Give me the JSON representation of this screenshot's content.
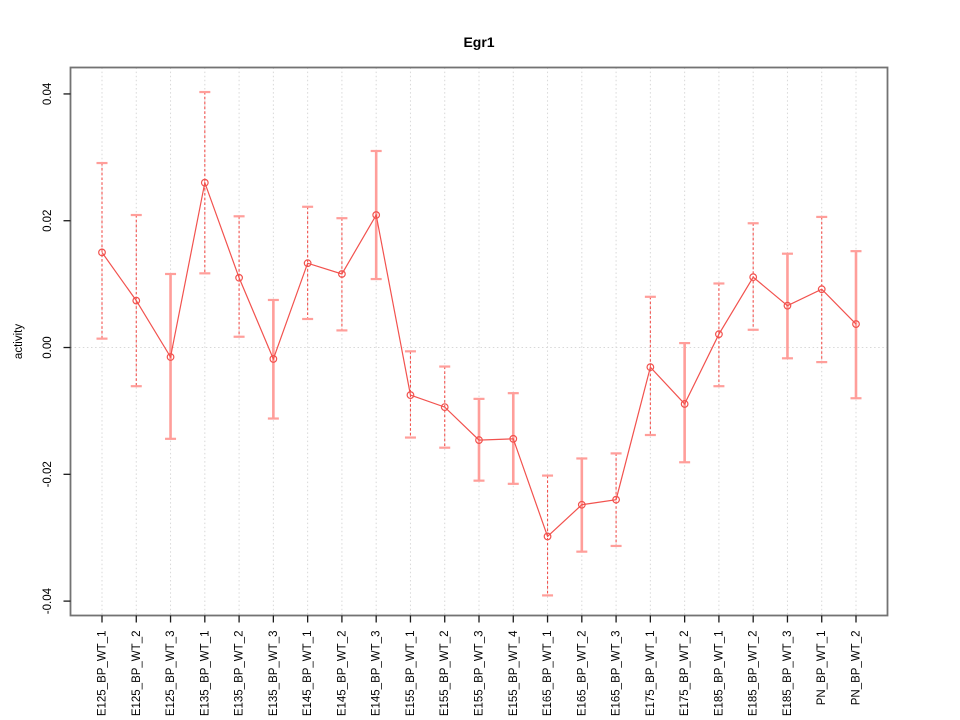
{
  "page": {
    "background": "#ffffff",
    "description": "R-style line plot with error bars"
  },
  "chart_data": {
    "type": "line",
    "title": "Egr1",
    "xlabel": "",
    "ylabel": "activity",
    "legend_position": "none",
    "point_marker": "open-circle",
    "categories": [
      "E125_BP_WT_1",
      "E125_BP_WT_2",
      "E125_BP_WT_3",
      "E135_BP_WT_1",
      "E135_BP_WT_2",
      "E135_BP_WT_3",
      "E145_BP_WT_1",
      "E145_BP_WT_2",
      "E145_BP_WT_3",
      "E155_BP_WT_1",
      "E155_BP_WT_2",
      "E155_BP_WT_3",
      "E155_BP_WT_4",
      "E165_BP_WT_1",
      "E165_BP_WT_2",
      "E165_BP_WT_3",
      "E175_BP_WT_1",
      "E175_BP_WT_2",
      "E185_BP_WT_1",
      "E185_BP_WT_2",
      "E185_BP_WT_3",
      "PN_BP_WT_1",
      "PN_BP_WT_2"
    ],
    "series": [
      {
        "name": "activity",
        "values": [
          0.015,
          0.0074,
          -0.0015,
          0.026,
          0.011,
          -0.0018,
          0.0133,
          0.0116,
          0.0209,
          -0.0075,
          -0.0094,
          -0.0146,
          -0.0144,
          -0.0298,
          -0.0248,
          -0.024,
          -0.0031,
          -0.0089,
          0.0021,
          0.0111,
          0.0066,
          0.0092,
          0.0037
        ],
        "error_low": [
          0.0014,
          -0.0061,
          -0.0144,
          0.0117,
          0.0017,
          -0.0112,
          0.0045,
          0.0027,
          0.0108,
          -0.0142,
          -0.0158,
          -0.021,
          -0.0215,
          -0.0391,
          -0.0322,
          -0.0313,
          -0.0138,
          -0.0181,
          -0.0061,
          0.0028,
          -0.0017,
          -0.0023,
          -0.008
        ],
        "error_high": [
          0.0291,
          0.0209,
          0.0116,
          0.0403,
          0.0207,
          0.0075,
          0.0222,
          0.0204,
          0.031,
          -0.0006,
          -0.003,
          -0.0081,
          -0.0072,
          -0.0202,
          -0.0175,
          -0.0167,
          0.008,
          0.0007,
          0.0101,
          0.0196,
          0.0148,
          0.0206,
          0.0152
        ],
        "bar_styles": [
          "dashed",
          "dashed",
          "solid",
          "dashed",
          "dashed",
          "solid",
          "dashed",
          "dashed",
          "solid",
          "dashed",
          "dashed",
          "solid",
          "solid",
          "dashed",
          "solid",
          "dashed",
          "dashed",
          "solid",
          "dashed",
          "dashed",
          "solid",
          "dashed",
          "solid"
        ]
      }
    ],
    "yticks": {
      "values": [
        0.04,
        0.02,
        0.0,
        -0.02,
        -0.04
      ],
      "labels": [
        "0.04",
        "0.02",
        "0.00",
        "-0.02",
        "-0.04"
      ]
    },
    "ylim": [
      -0.04227,
      0.04417
    ],
    "grid": {
      "vertical_per_category": true,
      "horizontal_at_zero": true,
      "style": "dotted"
    },
    "colors": {
      "series": "#f2524e",
      "error_bar_solid": "#ff9e9a",
      "error_bar_cap": "#ff9e9a",
      "grid": "#d8d8d8",
      "box": "#737373",
      "tick": "#1a1a1a",
      "text": "#000000",
      "background": "#ffffff"
    }
  }
}
